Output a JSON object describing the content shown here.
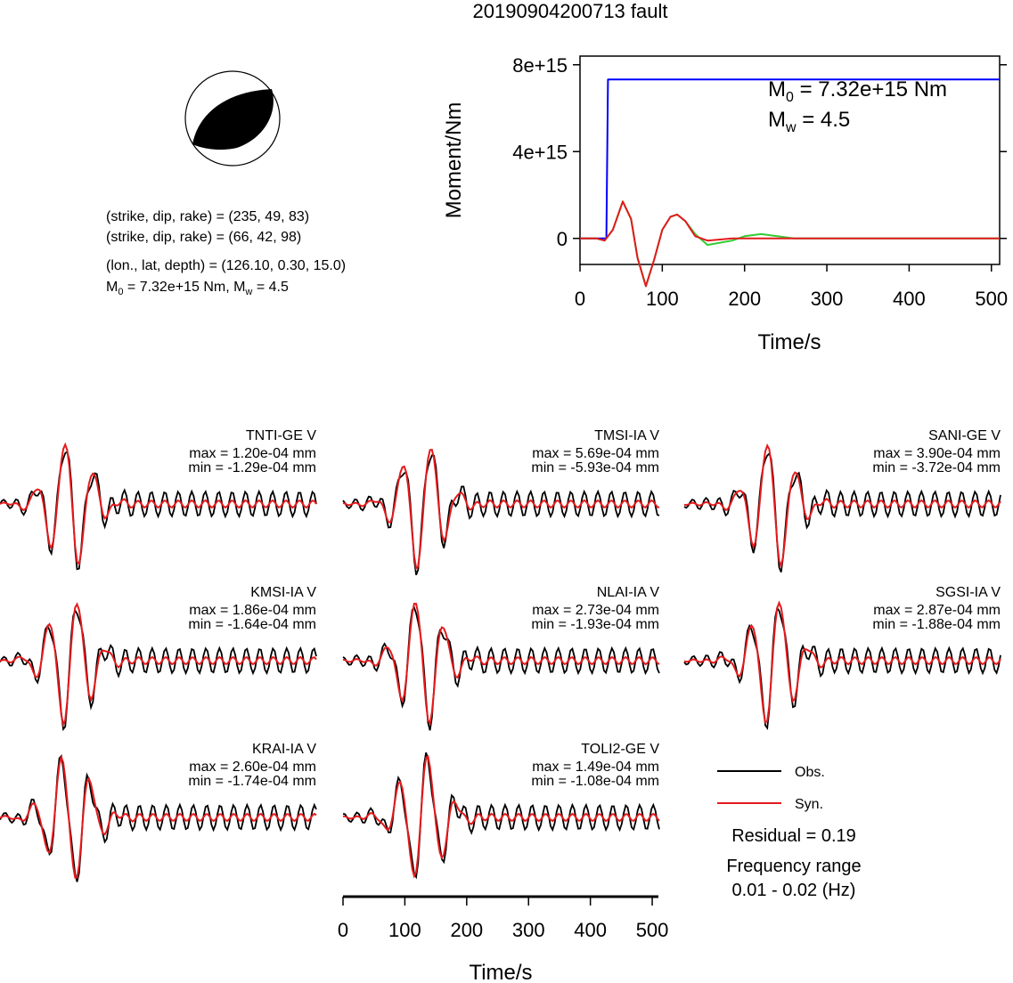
{
  "title": "20190904200713 fault",
  "beachball": {
    "plane1": "(strike, dip, rake) = (235, 49, 83)",
    "plane2": "(strike, dip, rake) = (66, 42, 98)",
    "location": "(lon., lat, depth) = (126.10, 0.30, 15.0)",
    "moment_prefix": "M",
    "moment_sub": "0",
    "moment_value": " = 7.32e+15 Nm, M",
    "mw_sub": "w",
    "mw_value": " = 4.5"
  },
  "moment_chart": {
    "ylabel": "Moment/Nm",
    "xlabel": "Time/s",
    "m0_prefix": "M",
    "m0_sub": "0",
    "m0_text": " = 7.32e+15 Nm",
    "mw_prefix": "M",
    "mw_sub": "w",
    "mw_text": " = 4.5",
    "ytick_labels": [
      "8e+15",
      "4e+15",
      "0"
    ],
    "xtick_labels": [
      "0",
      "100",
      "200",
      "300",
      "400",
      "500"
    ]
  },
  "stations": [
    {
      "name": "TNTI-GE V",
      "max": "max = 1.20e-04 mm",
      "min": "min = -1.29e-04 mm"
    },
    {
      "name": "TMSI-IA V",
      "max": "max = 5.69e-04 mm",
      "min": "min = -5.93e-04 mm"
    },
    {
      "name": "SANI-GE V",
      "max": "max = 3.90e-04 mm",
      "min": "min = -3.72e-04 mm"
    },
    {
      "name": "KMSI-IA V",
      "max": "max = 1.86e-04 mm",
      "min": "min = -1.64e-04 mm"
    },
    {
      "name": "NLAI-IA V",
      "max": "max = 2.73e-04 mm",
      "min": "min = -1.93e-04 mm"
    },
    {
      "name": "SGSI-IA V",
      "max": "max = 2.87e-04 mm",
      "min": "min = -1.88e-04 mm"
    },
    {
      "name": "KRAI-IA V",
      "max": "max = 2.60e-04 mm",
      "min": "min = -1.74e-04 mm"
    },
    {
      "name": "TOLI2-GE V",
      "max": "max = 1.49e-04 mm",
      "min": "min = -1.08e-04 mm"
    }
  ],
  "legend": {
    "obs": "Obs.",
    "syn": "Syn.",
    "residual": "Residual = 0.19",
    "freq_title": "Frequency range",
    "freq_value": "0.01 - 0.02 (Hz)"
  },
  "waveform_axis": {
    "xlabel": "Time/s",
    "xtick_labels": [
      "0",
      "100",
      "200",
      "300",
      "400",
      "500"
    ]
  },
  "colors": {
    "observed": "#000000",
    "synthetic": "#e41a1c",
    "moment": "#0000ff",
    "green": "#33cc33"
  },
  "chart_data": [
    {
      "type": "line",
      "title": "20190904200713 fault",
      "xlabel": "Time/s",
      "ylabel": "Moment/Nm",
      "xlim": [
        0,
        510
      ],
      "ylim": [
        -1200000000000000.0,
        8400000000000000.0
      ],
      "series": [
        {
          "x": [
            0,
            32,
            34,
            510
          ],
          "values": [
            0,
            0,
            7320000000000000.0,
            7320000000000000.0
          ]
        },
        {
          "x": [
            0,
            20,
            30,
            40,
            52,
            62,
            70,
            80,
            90,
            100,
            110,
            118,
            128,
            140,
            155,
            170,
            185,
            200,
            220,
            240,
            260,
            300,
            350,
            400,
            450,
            510
          ],
          "values": [
            0,
            0,
            -100000000000000.0,
            400000000000000.0,
            1700000000000000.0,
            900000000000000.0,
            -900000000000000.0,
            -2200000000000000.0,
            -1000000000000000.0,
            400000000000000.0,
            1000000000000000.0,
            1100000000000000.0,
            800000000000000.0,
            200000000000000.0,
            -300000000000000.0,
            -200000000000000.0,
            -100000000000000.0,
            100000000000000.0,
            200000000000000.0,
            100000000000000.0,
            0,
            0,
            0,
            0,
            0,
            0
          ]
        },
        {
          "x": [
            0,
            20,
            30,
            40,
            52,
            62,
            70,
            80,
            90,
            100,
            110,
            118,
            128,
            140,
            155,
            170,
            185,
            200,
            220,
            240,
            260,
            300,
            350,
            400,
            450,
            510
          ],
          "values": [
            0,
            0,
            -100000000000000.0,
            400000000000000.0,
            1700000000000000.0,
            900000000000000.0,
            -900000000000000.0,
            -2200000000000000.0,
            -1000000000000000.0,
            400000000000000.0,
            1000000000000000.0,
            1100000000000000.0,
            800000000000000.0,
            100000000000000.0,
            -100000000000000.0,
            -50000000000000.0,
            0,
            0,
            0,
            0,
            0,
            0,
            0,
            0,
            0,
            0
          ]
        }
      ]
    }
  ]
}
